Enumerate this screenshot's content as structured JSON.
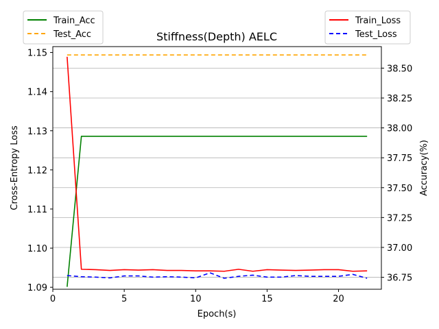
{
  "chart_data": {
    "type": "line",
    "title": "Stiffness(Depth) AELC",
    "xlabel": "Epoch(s)",
    "ylabel_left": "Cross-Entropy Loss",
    "ylabel_right": "Accuracy(%)",
    "xlim": [
      0,
      23
    ],
    "ylim_left": [
      1.0895,
      1.1515
    ],
    "ylim_right": [
      36.65,
      38.68
    ],
    "x_ticks": [
      0,
      5,
      10,
      15,
      20
    ],
    "y_ticks_left": [
      1.09,
      1.1,
      1.11,
      1.12,
      1.13,
      1.14,
      1.15
    ],
    "y_ticks_left_labels": [
      "1.09",
      "1.10",
      "1.11",
      "1.12",
      "1.13",
      "1.14",
      "1.15"
    ],
    "y_ticks_right": [
      36.75,
      37.0,
      37.25,
      37.5,
      37.75,
      38.0,
      38.25,
      38.5
    ],
    "y_ticks_right_labels": [
      "36.75",
      "37.00",
      "37.25",
      "37.50",
      "37.75",
      "38.00",
      "38.25",
      "38.50"
    ],
    "grid": "horizontal lines on right axis",
    "x": [
      1,
      2,
      3,
      4,
      5,
      6,
      7,
      8,
      9,
      10,
      11,
      12,
      13,
      14,
      15,
      16,
      17,
      18,
      19,
      20,
      21,
      22
    ],
    "series_left": [
      {
        "name": "Train_Loss",
        "color": "#ff0000",
        "style": "solid",
        "values": [
          1.1489,
          1.0946,
          1.0945,
          1.0943,
          1.0945,
          1.0944,
          1.0945,
          1.0943,
          1.0943,
          1.0942,
          1.0942,
          1.0941,
          1.0946,
          1.0941,
          1.0945,
          1.0944,
          1.0943,
          1.0944,
          1.0945,
          1.0945,
          1.0941,
          1.0942
        ]
      },
      {
        "name": "Test_Loss",
        "color": "#0000ff",
        "style": "dashed",
        "values": [
          1.093,
          1.0927,
          1.0926,
          1.0924,
          1.0929,
          1.0929,
          1.0926,
          1.0927,
          1.0926,
          1.0924,
          1.0937,
          1.0923,
          1.0928,
          1.0931,
          1.0926,
          1.0926,
          1.093,
          1.0928,
          1.0928,
          1.0928,
          1.0933,
          1.0923
        ]
      }
    ],
    "series_right": [
      {
        "name": "Train_Acc",
        "color": "#008000",
        "style": "solid",
        "values": [
          36.67,
          37.93,
          37.93,
          37.93,
          37.93,
          37.93,
          37.93,
          37.93,
          37.93,
          37.93,
          37.93,
          37.93,
          37.93,
          37.93,
          37.93,
          37.93,
          37.93,
          37.93,
          37.93,
          37.93,
          37.93,
          37.93
        ]
      },
      {
        "name": "Test_Acc",
        "color": "#ffa500",
        "style": "dashed",
        "values": [
          38.61,
          38.61,
          38.61,
          38.61,
          38.61,
          38.61,
          38.61,
          38.61,
          38.61,
          38.61,
          38.61,
          38.61,
          38.61,
          38.61,
          38.61,
          38.61,
          38.61,
          38.61,
          38.61,
          38.61,
          38.61,
          38.61
        ]
      }
    ],
    "legend_left_position": "top-left, outside above axes",
    "legend_right_position": "top-right, outside above axes",
    "legend_left": [
      "Train_Acc",
      "Test_Acc"
    ],
    "legend_right": [
      "Train_Loss",
      "Test_Loss"
    ]
  }
}
